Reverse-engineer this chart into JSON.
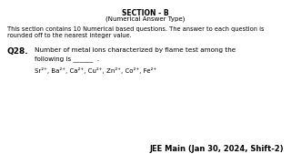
{
  "background_color": "#ffffff",
  "section_title": "SECTION - B",
  "section_subtitle": "(Numerical Answer Type)",
  "description_line1": "This section contains 10 Numerical based questions. The answer to each question is",
  "description_line2": "rounded off to the nearest integer value.",
  "question_number": "Q28.",
  "question_line1": "Number of metal ions characterized by flame test among the",
  "question_line2": "following is ______  .",
  "ions_line": "Sr²⁺, Ba²⁺, Ca²⁺, Cu²⁺, Zn²⁺, Co²⁺, Fe²⁺",
  "footer": "JEE Main (Jan 30, 2024, Shift-2)",
  "title_fontsize": 5.5,
  "subtitle_fontsize": 5.0,
  "body_fontsize": 4.8,
  "q_num_fontsize": 6.5,
  "q_text_fontsize": 5.2,
  "ions_fontsize": 5.0,
  "footer_fontsize": 6.0
}
